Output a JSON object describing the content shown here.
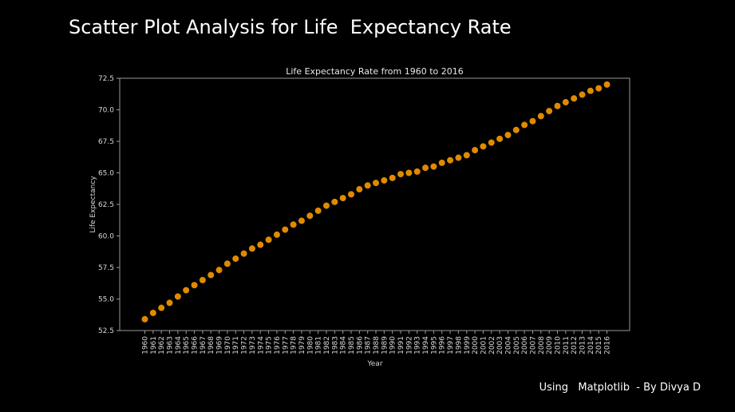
{
  "slide": {
    "title": "Scatter Plot Analysis for Life  Expectancy Rate",
    "footer": "Using   Matplotlib  - By Divya D"
  },
  "chart_data": {
    "type": "scatter",
    "title": "Life Expectancy Rate from 1960 to 2016",
    "xlabel": "Year",
    "ylabel": "Life Expectancy",
    "ylim": [
      52.5,
      72.5
    ],
    "yticks": [
      52.5,
      55.0,
      57.5,
      60.0,
      62.5,
      65.0,
      67.5,
      70.0,
      72.5
    ],
    "grid": false,
    "marker_color": "#e08a00",
    "x": [
      1960,
      1961,
      1962,
      1963,
      1964,
      1965,
      1966,
      1967,
      1968,
      1969,
      1970,
      1971,
      1972,
      1973,
      1974,
      1975,
      1976,
      1977,
      1978,
      1979,
      1980,
      1981,
      1982,
      1983,
      1984,
      1985,
      1986,
      1987,
      1988,
      1989,
      1990,
      1991,
      1992,
      1993,
      1994,
      1995,
      1996,
      1997,
      1998,
      1999,
      2000,
      2001,
      2002,
      2003,
      2004,
      2005,
      2006,
      2007,
      2008,
      2009,
      2010,
      2011,
      2012,
      2013,
      2014,
      2015,
      2016
    ],
    "y": [
      53.4,
      53.9,
      54.3,
      54.7,
      55.2,
      55.7,
      56.1,
      56.5,
      56.9,
      57.3,
      57.8,
      58.2,
      58.6,
      59.0,
      59.3,
      59.7,
      60.1,
      60.5,
      60.9,
      61.2,
      61.6,
      62.0,
      62.4,
      62.7,
      63.0,
      63.3,
      63.7,
      64.0,
      64.2,
      64.4,
      64.6,
      64.9,
      65.0,
      65.1,
      65.4,
      65.5,
      65.8,
      66.0,
      66.2,
      66.4,
      66.8,
      67.1,
      67.4,
      67.7,
      68.0,
      68.4,
      68.8,
      69.1,
      69.5,
      69.9,
      70.3,
      70.6,
      70.9,
      71.2,
      71.5,
      71.7,
      72.0
    ]
  }
}
